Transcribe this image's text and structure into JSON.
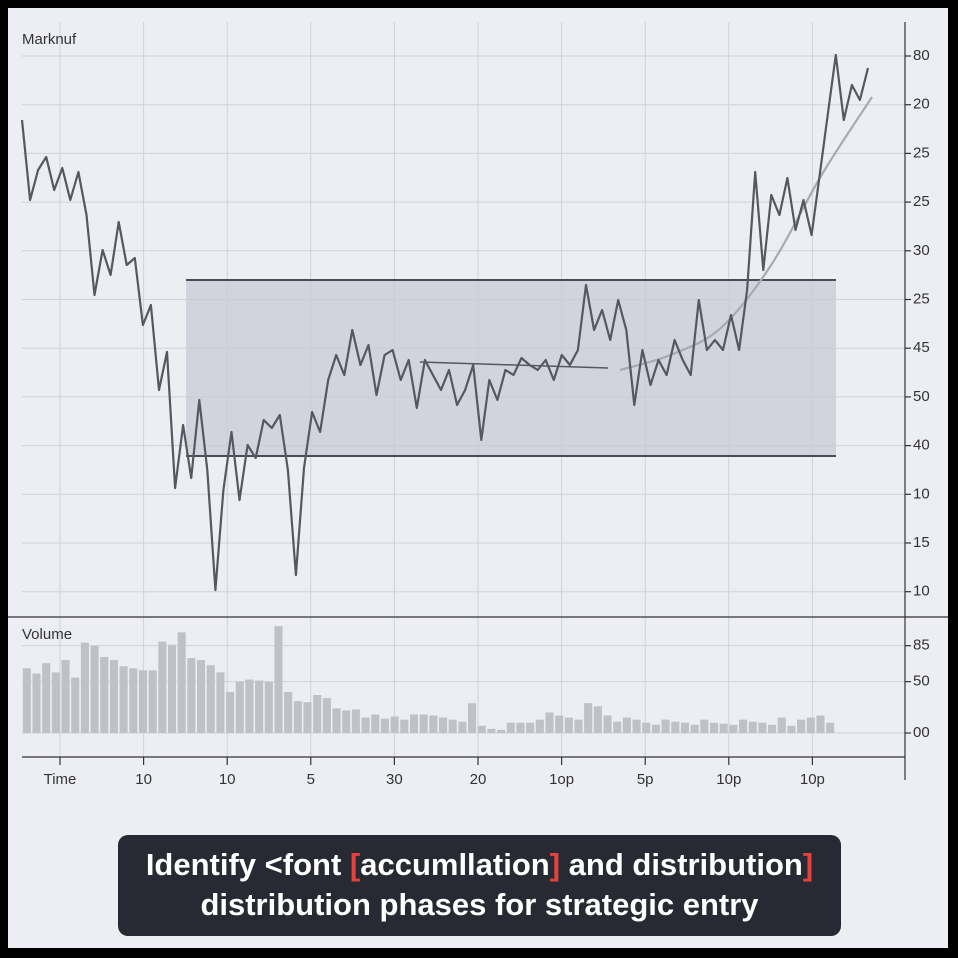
{
  "price_panel": {
    "title": "Marknuf",
    "axis_labels": [
      "80",
      "20",
      "25",
      "25",
      "30",
      "25",
      "45",
      "50",
      "40",
      "10",
      "15",
      "10"
    ],
    "ylim": [
      0,
      58.7
    ],
    "values": [
      49.7,
      41.7,
      44.7,
      46,
      42.7,
      44.9,
      41.7,
      44.5,
      40.2,
      32.2,
      36.7,
      34.2,
      39.5,
      35.2,
      35.9,
      29.2,
      31.2,
      22.7,
      26.5,
      12.9,
      19.2,
      13.9,
      21.7,
      14.7,
      2.7,
      12.7,
      18.5,
      11.7,
      17.2,
      15.9,
      19.7,
      18.9,
      20.2,
      14.7,
      4.2,
      14.9,
      20.5,
      18.5,
      23.7,
      26.2,
      24.2,
      28.7,
      25.2,
      27.2,
      22.2,
      26.2,
      26.7,
      23.7,
      25.7,
      20.9,
      25.7,
      24.2,
      22.7,
      24.7,
      21.2,
      22.7,
      25.2,
      17.7,
      23.7,
      21.7,
      24.7,
      24.2,
      25.9,
      25.2,
      24.7,
      25.7,
      23.7,
      26.2,
      25.2,
      26.7,
      33.2,
      28.7,
      30.7,
      27.7,
      31.7,
      28.7,
      21.2,
      26.7,
      23.2,
      25.7,
      24.2,
      27.7,
      25.7,
      24.2,
      31.7,
      26.7,
      27.7,
      26.7,
      30.2,
      26.7,
      32.7,
      44.5,
      34.7,
      42.2,
      40.2,
      43.9,
      38.7,
      41.7,
      38.2,
      44.2,
      50.2,
      56.2,
      49.7,
      53.2,
      51.7,
      54.9
    ],
    "range_box": {
      "top": 33.7,
      "bottom": 16.1
    },
    "flat_line": [
      25.5,
      24.9
    ],
    "trend_curve": [
      24.7,
      26.2,
      28.9,
      35.2,
      44.2,
      52.0
    ],
    "line_color": "#55585f"
  },
  "volume_panel": {
    "title": "Volume",
    "ylim": [
      0,
      110
    ],
    "yticks": [
      85,
      50,
      {
        "value": 0,
        "label": "00"
      }
    ],
    "values": [
      63,
      58,
      68,
      59,
      71,
      54,
      88,
      85,
      74,
      71,
      65,
      63,
      61,
      61,
      89,
      86,
      98,
      73,
      71,
      66,
      59,
      40,
      50,
      52,
      51,
      50,
      104,
      40,
      31,
      30,
      37,
      34,
      24,
      22,
      23,
      15,
      18,
      14,
      16,
      13,
      18,
      18,
      17,
      15,
      13,
      11,
      29,
      7,
      4,
      3,
      10,
      10,
      10,
      13,
      20,
      17,
      15,
      13,
      29,
      26,
      17,
      11,
      15,
      13,
      10,
      8,
      13,
      11,
      10,
      8,
      13,
      10,
      9,
      8,
      13,
      11,
      10,
      8,
      15,
      7,
      13,
      15,
      17,
      10
    ],
    "color": "#bfc1c9"
  },
  "x_axis_labels": [
    "Time",
    "10",
    "10",
    "5",
    "30",
    "20",
    "1op",
    "5p",
    "10p",
    "10p"
  ],
  "caption": {
    "line1": [
      "Identify <font ",
      "[",
      "accumllation",
      "]",
      " and distribution",
      "]"
    ],
    "line2": "distribution phases for strategic entry"
  }
}
